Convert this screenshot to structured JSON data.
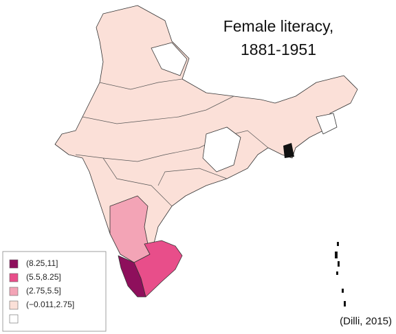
{
  "title": [
    "Female literacy,",
    "1881-1951"
  ],
  "legend": [
    {
      "label": "(8.25,11]",
      "color": "#8e0f5c"
    },
    {
      "label": "(5.5,8.25]",
      "color": "#e84e8a"
    },
    {
      "label": "(2.75,5.5]",
      "color": "#f3a4b6"
    },
    {
      "label": "(−0.011,2.75]",
      "color": "#fbe0d8"
    },
    {
      "color": "#ffffff"
    }
  ],
  "source": "(Dilli, 2015)"
}
